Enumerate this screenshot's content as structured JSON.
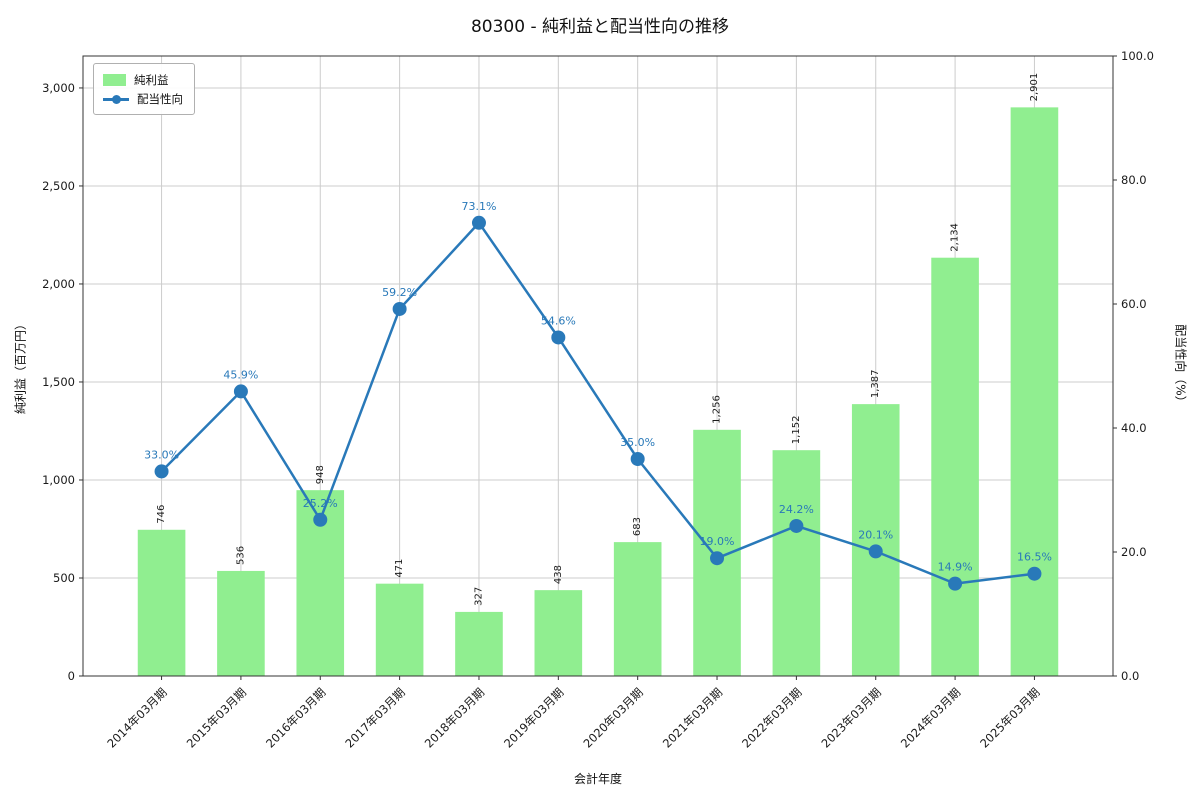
{
  "chart_data": {
    "type": "bar+line",
    "title": "80300 - 純利益と配当性向の推移",
    "xlabel": "会計年度",
    "ylabel_left": "純利益（百万円）",
    "ylabel_right": "配当性向（%）",
    "categories": [
      "2014年03月期",
      "2015年03月期",
      "2016年03月期",
      "2017年03月期",
      "2018年03月期",
      "2019年03月期",
      "2020年03月期",
      "2021年03月期",
      "2022年03月期",
      "2023年03月期",
      "2024年03月期",
      "2025年03月期"
    ],
    "series": [
      {
        "name": "純利益",
        "type": "bar",
        "axis": "left",
        "color": "#90ee90",
        "values": [
          746,
          536,
          948,
          471,
          327,
          438,
          683,
          1256,
          1152,
          1387,
          2134,
          2901
        ]
      },
      {
        "name": "配当性向",
        "type": "line",
        "axis": "right",
        "color": "#2979b9",
        "values": [
          33.0,
          45.9,
          25.2,
          59.2,
          73.1,
          54.6,
          35.0,
          19.0,
          24.2,
          20.1,
          14.9,
          16.5
        ]
      }
    ],
    "ylim_left": [
      0,
      3163
    ],
    "yticks_left": [
      0,
      500,
      1000,
      1500,
      2000,
      2500,
      3000
    ],
    "ylim_right": [
      0,
      100
    ],
    "yticks_right": [
      0,
      20,
      40,
      60,
      80,
      100
    ],
    "grid": true,
    "legend_position": "upper left",
    "colors": {
      "grid": "#cccccc",
      "spine": "#333333",
      "text": "#1a1a1a",
      "bar": "#90ee90",
      "line": "#2979b9"
    }
  }
}
